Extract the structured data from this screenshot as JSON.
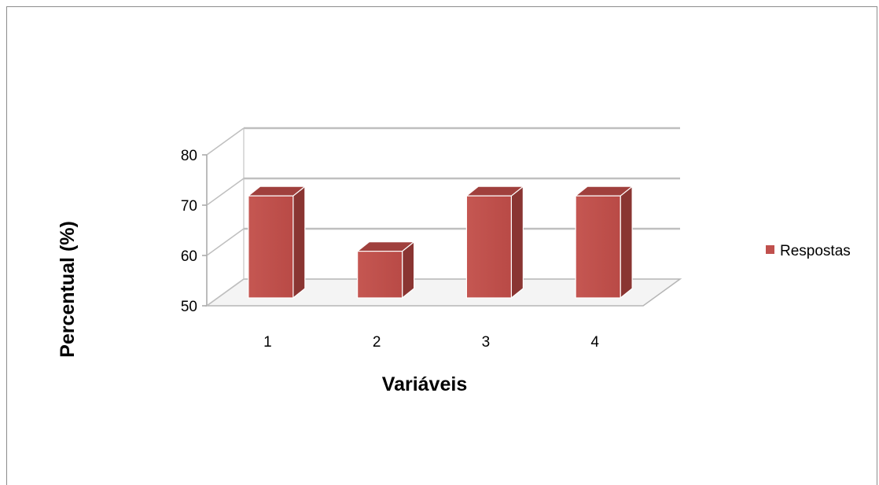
{
  "chart_data": {
    "type": "bar",
    "style": "3d-column",
    "categories": [
      "1",
      "2",
      "3",
      "4"
    ],
    "series": [
      {
        "name": "Respostas",
        "values": [
          72,
          61,
          72,
          72
        ],
        "color": "#c0504d"
      }
    ],
    "xlabel": "Variáveis",
    "ylabel": "Percentual (%)",
    "ylim": [
      50,
      80
    ],
    "yticks": [
      "50",
      "60",
      "70",
      "80"
    ],
    "grid": true,
    "legend_position": "right"
  }
}
